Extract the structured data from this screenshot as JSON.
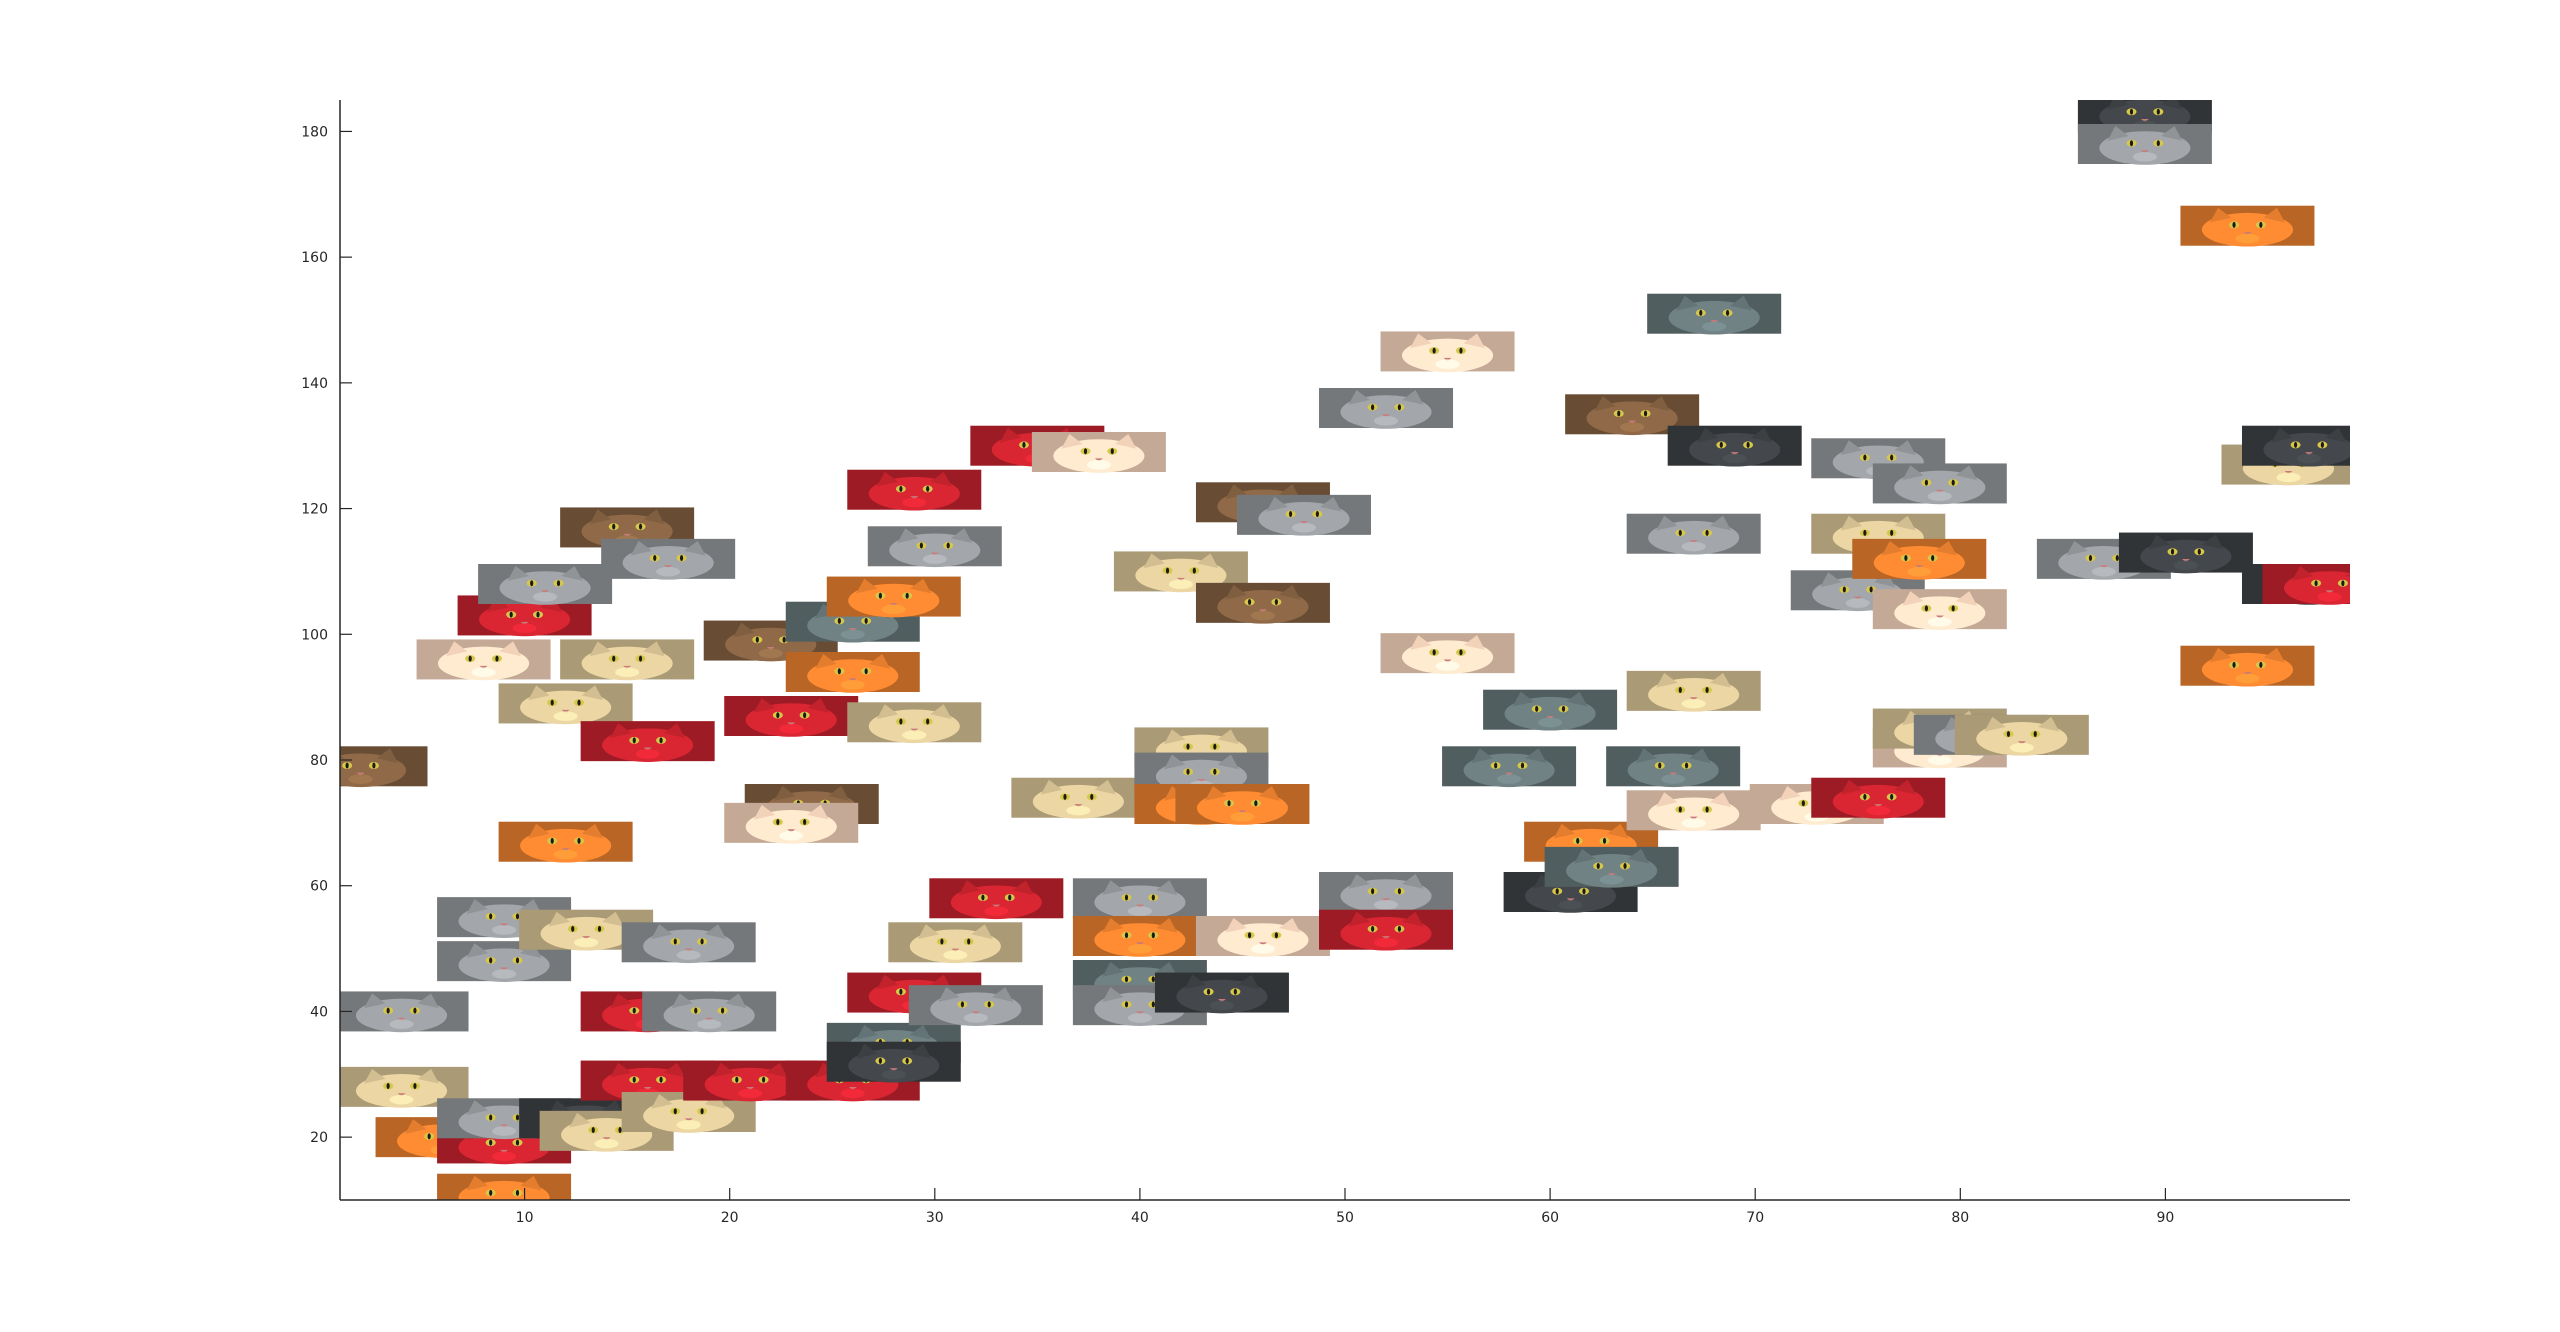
{
  "chart_data": {
    "type": "scatter",
    "title": "",
    "xlabel": "",
    "ylabel": "",
    "xlim": [
      1,
      99
    ],
    "ylim": [
      10,
      185
    ],
    "xticks": [
      10,
      20,
      30,
      40,
      50,
      60,
      70,
      80,
      90
    ],
    "yticks": [
      20,
      40,
      60,
      80,
      100,
      120,
      140,
      160,
      180
    ],
    "grid": false,
    "legend": "none",
    "marker": "cat-face-image",
    "marker_palette": {
      "orange": "#d9772b",
      "gray": "#8a8d90",
      "dark": "#3a3d40",
      "red": "#b8202a",
      "tan": "#c8b58a",
      "brown": "#7a5a3d",
      "slate": "#5f6e70",
      "cream": "#e6c8b0"
    },
    "points": [
      {
        "x": 2,
        "y": 79,
        "style": "brown"
      },
      {
        "x": 4,
        "y": 40,
        "style": "gray"
      },
      {
        "x": 4,
        "y": 28,
        "style": "tan"
      },
      {
        "x": 6,
        "y": 20,
        "style": "orange"
      },
      {
        "x": 8,
        "y": 96,
        "style": "cream"
      },
      {
        "x": 9,
        "y": 11,
        "style": "orange"
      },
      {
        "x": 9,
        "y": 19,
        "style": "red"
      },
      {
        "x": 9,
        "y": 23,
        "style": "gray"
      },
      {
        "x": 9,
        "y": 48,
        "style": "gray"
      },
      {
        "x": 9,
        "y": 55,
        "style": "gray"
      },
      {
        "x": 10,
        "y": 103,
        "style": "red"
      },
      {
        "x": 11,
        "y": 108,
        "style": "gray"
      },
      {
        "x": 12,
        "y": 67,
        "style": "orange"
      },
      {
        "x": 12,
        "y": 89,
        "style": "tan"
      },
      {
        "x": 13,
        "y": 53,
        "style": "tan"
      },
      {
        "x": 13,
        "y": 23,
        "style": "dark"
      },
      {
        "x": 14,
        "y": 21,
        "style": "tan"
      },
      {
        "x": 15,
        "y": 117,
        "style": "brown"
      },
      {
        "x": 15,
        "y": 96,
        "style": "tan"
      },
      {
        "x": 16,
        "y": 83,
        "style": "red"
      },
      {
        "x": 16,
        "y": 40,
        "style": "red"
      },
      {
        "x": 16,
        "y": 29,
        "style": "red"
      },
      {
        "x": 17,
        "y": 112,
        "style": "gray"
      },
      {
        "x": 18,
        "y": 24,
        "style": "tan"
      },
      {
        "x": 18,
        "y": 51,
        "style": "gray"
      },
      {
        "x": 19,
        "y": 40,
        "style": "gray"
      },
      {
        "x": 21,
        "y": 29,
        "style": "red"
      },
      {
        "x": 22,
        "y": 99,
        "style": "brown"
      },
      {
        "x": 23,
        "y": 87,
        "style": "red"
      },
      {
        "x": 24,
        "y": 73,
        "style": "brown"
      },
      {
        "x": 23,
        "y": 70,
        "style": "cream"
      },
      {
        "x": 26,
        "y": 102,
        "style": "slate"
      },
      {
        "x": 26,
        "y": 94,
        "style": "orange"
      },
      {
        "x": 26,
        "y": 29,
        "style": "red"
      },
      {
        "x": 28,
        "y": 35,
        "style": "slate"
      },
      {
        "x": 28,
        "y": 32,
        "style": "dark"
      },
      {
        "x": 28,
        "y": 106,
        "style": "orange"
      },
      {
        "x": 29,
        "y": 86,
        "style": "tan"
      },
      {
        "x": 29,
        "y": 43,
        "style": "red"
      },
      {
        "x": 29,
        "y": 123,
        "style": "red"
      },
      {
        "x": 30,
        "y": 114,
        "style": "gray"
      },
      {
        "x": 31,
        "y": 51,
        "style": "tan"
      },
      {
        "x": 32,
        "y": 41,
        "style": "gray"
      },
      {
        "x": 33,
        "y": 58,
        "style": "red"
      },
      {
        "x": 35,
        "y": 130,
        "style": "red"
      },
      {
        "x": 38,
        "y": 129,
        "style": "cream"
      },
      {
        "x": 37,
        "y": 74,
        "style": "tan"
      },
      {
        "x": 40,
        "y": 58,
        "style": "gray"
      },
      {
        "x": 40,
        "y": 52,
        "style": "orange"
      },
      {
        "x": 40,
        "y": 45,
        "style": "slate"
      },
      {
        "x": 40,
        "y": 41,
        "style": "gray"
      },
      {
        "x": 42,
        "y": 110,
        "style": "tan"
      },
      {
        "x": 43,
        "y": 82,
        "style": "tan"
      },
      {
        "x": 43,
        "y": 78,
        "style": "gray"
      },
      {
        "x": 43,
        "y": 73,
        "style": "orange"
      },
      {
        "x": 44,
        "y": 43,
        "style": "dark"
      },
      {
        "x": 45,
        "y": 73,
        "style": "orange"
      },
      {
        "x": 46,
        "y": 52,
        "style": "cream"
      },
      {
        "x": 46,
        "y": 105,
        "style": "brown"
      },
      {
        "x": 46,
        "y": 121,
        "style": "brown"
      },
      {
        "x": 48,
        "y": 119,
        "style": "gray"
      },
      {
        "x": 52,
        "y": 136,
        "style": "gray"
      },
      {
        "x": 52,
        "y": 59,
        "style": "gray"
      },
      {
        "x": 52,
        "y": 53,
        "style": "red"
      },
      {
        "x": 55,
        "y": 145,
        "style": "cream"
      },
      {
        "x": 55,
        "y": 97,
        "style": "cream"
      },
      {
        "x": 58,
        "y": 79,
        "style": "slate"
      },
      {
        "x": 60,
        "y": 88,
        "style": "slate"
      },
      {
        "x": 61,
        "y": 59,
        "style": "dark"
      },
      {
        "x": 62,
        "y": 67,
        "style": "orange"
      },
      {
        "x": 63,
        "y": 63,
        "style": "slate"
      },
      {
        "x": 64,
        "y": 135,
        "style": "brown"
      },
      {
        "x": 66,
        "y": 79,
        "style": "slate"
      },
      {
        "x": 67,
        "y": 91,
        "style": "tan"
      },
      {
        "x": 67,
        "y": 72,
        "style": "cream"
      },
      {
        "x": 67,
        "y": 116,
        "style": "gray"
      },
      {
        "x": 68,
        "y": 151,
        "style": "slate"
      },
      {
        "x": 69,
        "y": 130,
        "style": "dark"
      },
      {
        "x": 73,
        "y": 73,
        "style": "cream"
      },
      {
        "x": 76,
        "y": 74,
        "style": "red"
      },
      {
        "x": 75,
        "y": 107,
        "style": "gray"
      },
      {
        "x": 76,
        "y": 128,
        "style": "gray"
      },
      {
        "x": 76,
        "y": 116,
        "style": "tan"
      },
      {
        "x": 78,
        "y": 112,
        "style": "orange"
      },
      {
        "x": 79,
        "y": 124,
        "style": "gray"
      },
      {
        "x": 79,
        "y": 82,
        "style": "cream"
      },
      {
        "x": 79,
        "y": 104,
        "style": "cream"
      },
      {
        "x": 79,
        "y": 85,
        "style": "tan"
      },
      {
        "x": 81,
        "y": 84,
        "style": "gray"
      },
      {
        "x": 83,
        "y": 84,
        "style": "tan"
      },
      {
        "x": 87,
        "y": 112,
        "style": "gray"
      },
      {
        "x": 89,
        "y": 183,
        "style": "dark"
      },
      {
        "x": 89,
        "y": 178,
        "style": "gray"
      },
      {
        "x": 91,
        "y": 113,
        "style": "dark"
      },
      {
        "x": 94,
        "y": 95,
        "style": "orange"
      },
      {
        "x": 94,
        "y": 165,
        "style": "orange"
      },
      {
        "x": 96,
        "y": 127,
        "style": "tan"
      },
      {
        "x": 97,
        "y": 108,
        "style": "dark"
      },
      {
        "x": 97,
        "y": 130,
        "style": "dark"
      },
      {
        "x": 98,
        "y": 108,
        "style": "red"
      }
    ]
  }
}
